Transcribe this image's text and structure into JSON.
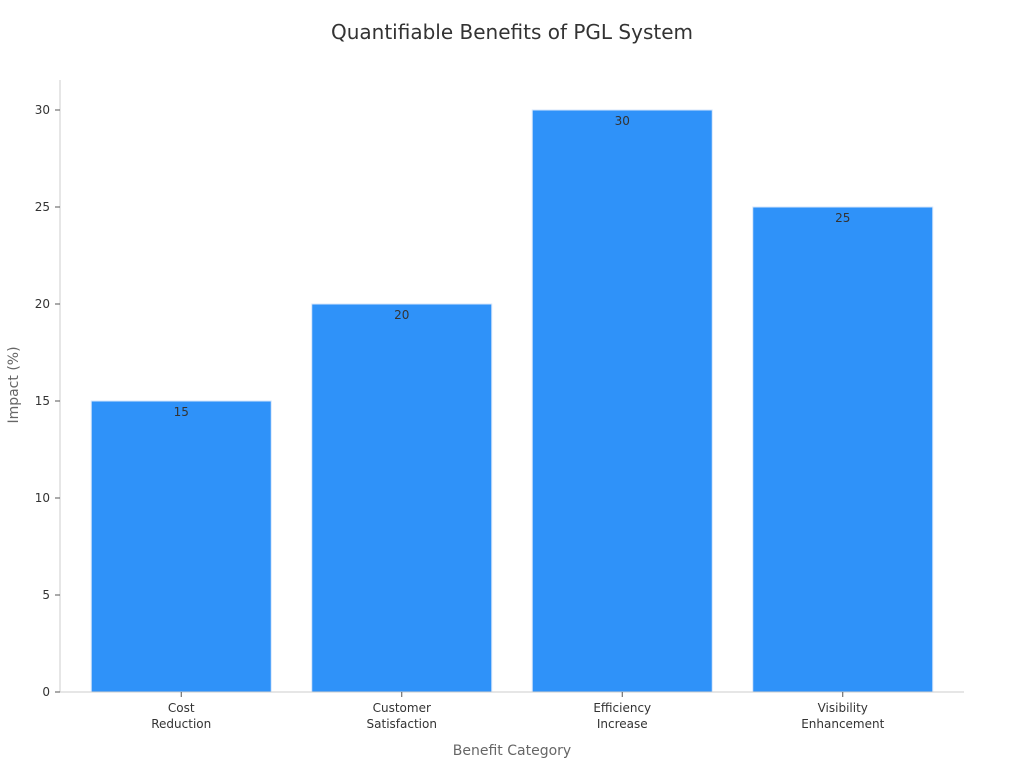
{
  "chart_data": {
    "type": "bar",
    "title": "Quantifiable Benefits of PGL System",
    "xlabel": "Benefit Category",
    "ylabel": "Impact (%)",
    "categories": [
      [
        "Cost",
        "Reduction"
      ],
      [
        "Customer",
        "Satisfaction"
      ],
      [
        "Efficiency",
        "Increase"
      ],
      [
        "Visibility",
        "Enhancement"
      ]
    ],
    "values": [
      15,
      20,
      30,
      25
    ],
    "data_labels": [
      "15",
      "20",
      "30",
      "25"
    ],
    "yticks": [
      0,
      5,
      10,
      15,
      20,
      25,
      30
    ],
    "ylim": [
      0,
      31.5
    ],
    "grid": false,
    "bar_color": "#2f92f9",
    "bar_edge_color": "#d6e6fb"
  }
}
